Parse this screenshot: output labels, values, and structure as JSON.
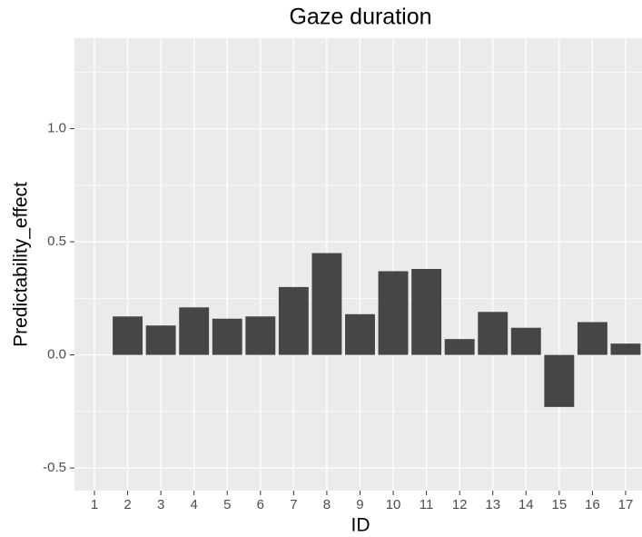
{
  "chart_data": {
    "type": "bar",
    "title": "Gaze duration",
    "x_label": "ID",
    "y_label": "Predictability_effect",
    "categories": [
      "1",
      "2",
      "3",
      "4",
      "5",
      "6",
      "7",
      "8",
      "9",
      "10",
      "11",
      "12",
      "13",
      "14",
      "15",
      "16",
      "17"
    ],
    "values": [
      null,
      0.17,
      0.13,
      0.21,
      0.16,
      0.17,
      0.3,
      0.45,
      0.18,
      0.37,
      0.38,
      0.07,
      0.19,
      0.12,
      -0.23,
      0.145,
      0.05
    ],
    "color": "#464646",
    "ylim": [
      -0.6,
      1.4
    ],
    "yticks": [
      {
        "value": -0.5,
        "label": "-0.5"
      },
      {
        "value": 0,
        "label": "0.0"
      },
      {
        "value": 0.5,
        "label": "0.5"
      },
      {
        "value": 1,
        "label": "1.0"
      }
    ],
    "grid": true
  }
}
